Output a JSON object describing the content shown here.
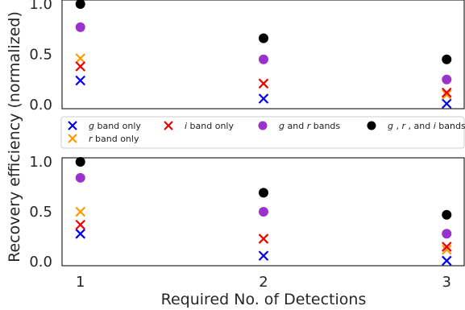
{
  "chart_data": {
    "type": "scatter",
    "ylabel": "Recovery efficiency (normalized)",
    "xlabel": "Required No. of Detections",
    "x": [
      1,
      2,
      3
    ],
    "xlim": [
      0.9,
      3.1
    ],
    "ylim": [
      -0.04,
      1.04
    ],
    "x_tick_labels": [
      "1",
      "2",
      "3"
    ],
    "y_tick_labels": [
      "0.0",
      "0.5",
      "1.0"
    ],
    "legend": {
      "placement": "between panels",
      "entries": [
        {
          "parts": [
            {
              "text": "g",
              "italic": true
            },
            {
              "text": " band only",
              "italic": false
            }
          ],
          "marker": "x",
          "color": "#0000ee"
        },
        {
          "parts": [
            {
              "text": "r",
              "italic": true
            },
            {
              "text": " band only",
              "italic": false
            }
          ],
          "marker": "x",
          "color": "#ff9900"
        },
        {
          "parts": [
            {
              "text": "i",
              "italic": true
            },
            {
              "text": " band only",
              "italic": false
            }
          ],
          "marker": "x",
          "color": "#ee0000"
        },
        {
          "parts": [
            {
              "text": "g",
              "italic": true
            },
            {
              "text": " and ",
              "italic": false
            },
            {
              "text": "r",
              "italic": true
            },
            {
              "text": " bands",
              "italic": false
            }
          ],
          "marker": "o",
          "color": "#9933cc"
        },
        {
          "parts": [
            {
              "text": "g",
              "italic": true
            },
            {
              "text": " , ",
              "italic": false
            },
            {
              "text": "r",
              "italic": true
            },
            {
              "text": " , and ",
              "italic": false
            },
            {
              "text": "i",
              "italic": true
            },
            {
              "text": " bands",
              "italic": false
            }
          ],
          "marker": "o",
          "color": "#000000"
        }
      ]
    },
    "panels": [
      {
        "series": [
          {
            "key": "g",
            "marker": "x",
            "color": "#0000ee",
            "values": [
              0.24,
              0.06,
              0.01
            ]
          },
          {
            "key": "r",
            "marker": "x",
            "color": "#ff9900",
            "values": [
              0.46,
              0.21,
              0.1
            ]
          },
          {
            "key": "i",
            "marker": "x",
            "color": "#ee0000",
            "values": [
              0.38,
              0.21,
              0.12
            ]
          },
          {
            "key": "gr",
            "marker": "o",
            "color": "#9933cc",
            "values": [
              0.77,
              0.45,
              0.25
            ]
          },
          {
            "key": "gri",
            "marker": "o",
            "color": "#000000",
            "values": [
              1.0,
              0.66,
              0.45
            ]
          }
        ]
      },
      {
        "series": [
          {
            "key": "g",
            "marker": "x",
            "color": "#0000ee",
            "values": [
              0.28,
              0.06,
              0.01
            ]
          },
          {
            "key": "r",
            "marker": "x",
            "color": "#ff9900",
            "values": [
              0.5,
              0.23,
              0.12
            ]
          },
          {
            "key": "i",
            "marker": "x",
            "color": "#ee0000",
            "values": [
              0.37,
              0.23,
              0.15
            ]
          },
          {
            "key": "gr",
            "marker": "o",
            "color": "#9933cc",
            "values": [
              0.84,
              0.5,
              0.28
            ]
          },
          {
            "key": "gri",
            "marker": "o",
            "color": "#000000",
            "values": [
              1.0,
              0.69,
              0.47
            ]
          }
        ]
      }
    ]
  }
}
